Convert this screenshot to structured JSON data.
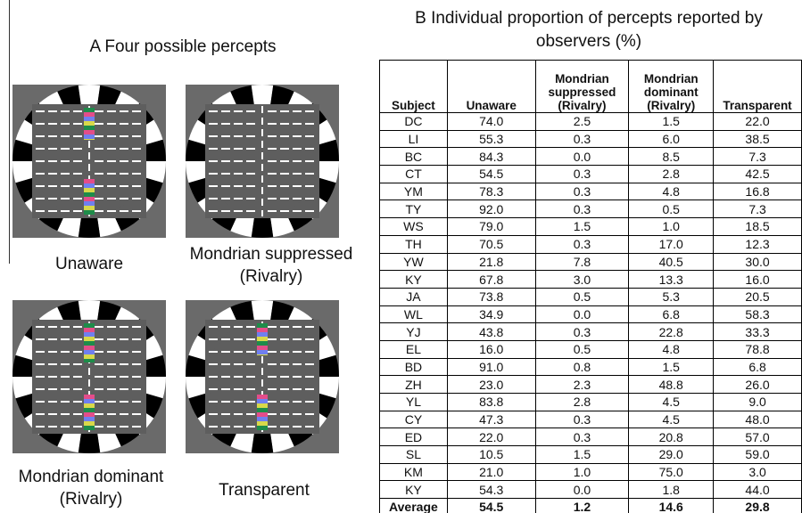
{
  "panel_a": {
    "title": "A  Four possible percepts",
    "labels": [
      "Unaware",
      "Mondrian suppressed (Rivalry)",
      "Mondrian dominant (Rivalry)",
      "Transparent"
    ]
  },
  "panel_b": {
    "title": "B  Individual proportion of percepts reported by observers (%)",
    "table": {
      "header": [
        "Subject",
        "Unaware",
        "Mondrian suppressed (Rivalry)",
        "Mondrian dominant (Rivalry)",
        "Transparent"
      ],
      "rows": [
        [
          "DC",
          "74.0",
          "2.5",
          "1.5",
          "22.0"
        ],
        [
          "LI",
          "55.3",
          "0.3",
          "6.0",
          "38.5"
        ],
        [
          "BC",
          "84.3",
          "0.0",
          "8.5",
          "7.3"
        ],
        [
          "CT",
          "54.5",
          "0.3",
          "2.8",
          "42.5"
        ],
        [
          "YM",
          "78.3",
          "0.3",
          "4.8",
          "16.8"
        ],
        [
          "TY",
          "92.0",
          "0.3",
          "0.5",
          "7.3"
        ],
        [
          "WS",
          "79.0",
          "1.5",
          "1.0",
          "18.5"
        ],
        [
          "TH",
          "70.5",
          "0.3",
          "17.0",
          "12.3"
        ],
        [
          "YW",
          "21.8",
          "7.8",
          "40.5",
          "30.0"
        ],
        [
          "KY",
          "67.8",
          "3.0",
          "13.3",
          "16.0"
        ],
        [
          "JA",
          "73.8",
          "0.5",
          "5.3",
          "20.5"
        ],
        [
          "WL",
          "34.9",
          "0.0",
          "6.8",
          "58.3"
        ],
        [
          "YJ",
          "43.8",
          "0.3",
          "22.8",
          "33.3"
        ],
        [
          "EL",
          "16.0",
          "0.5",
          "4.8",
          "78.8"
        ],
        [
          "BD",
          "91.0",
          "0.8",
          "1.5",
          "6.8"
        ],
        [
          "ZH",
          "23.0",
          "2.3",
          "48.8",
          "26.0"
        ],
        [
          "YL",
          "83.8",
          "2.8",
          "4.5",
          "9.0"
        ],
        [
          "CY",
          "47.3",
          "0.3",
          "4.5",
          "48.0"
        ],
        [
          "ED",
          "22.0",
          "0.3",
          "20.8",
          "57.0"
        ],
        [
          "SL",
          "10.5",
          "1.5",
          "29.0",
          "59.0"
        ],
        [
          "KM",
          "21.0",
          "1.0",
          "75.0",
          "3.0"
        ],
        [
          "KY",
          "54.3",
          "0.0",
          "1.8",
          "44.0"
        ],
        [
          "Average",
          "54.5",
          "1.2",
          "14.6",
          "29.8"
        ]
      ]
    }
  }
}
